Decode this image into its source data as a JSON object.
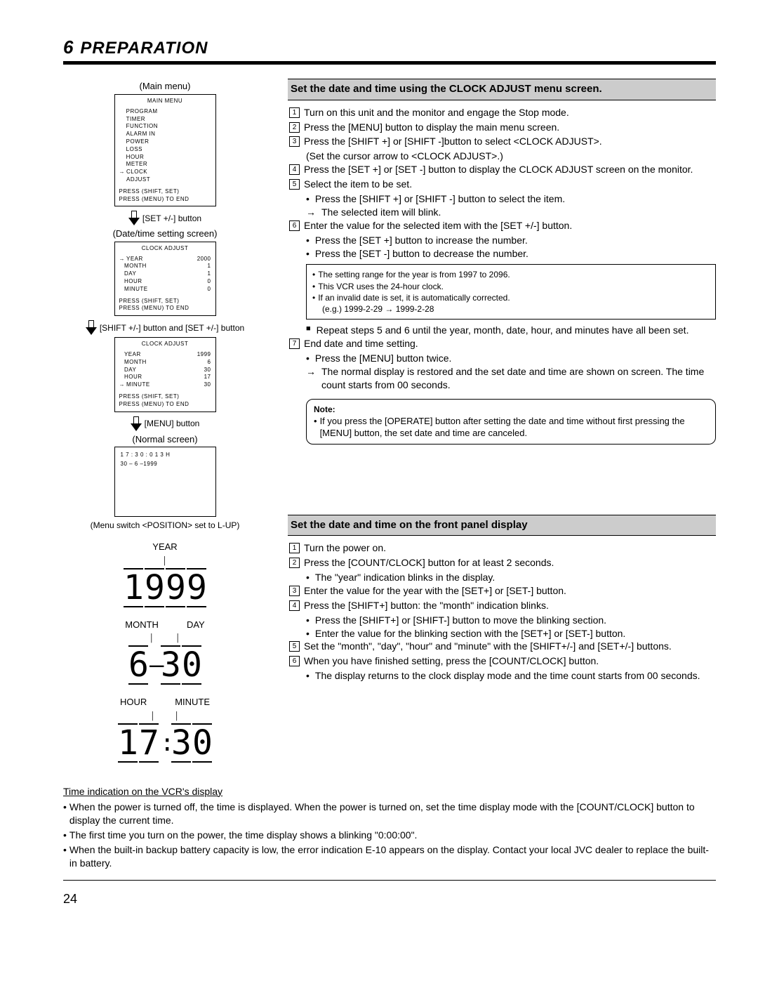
{
  "chapter": {
    "number": "6",
    "title": "PREPARATION"
  },
  "left": {
    "main_menu_label": "(Main menu)",
    "main_menu": {
      "title": "MAIN  MENU",
      "items": [
        "PROGRAM  TIMER",
        "FUNCTION",
        "ALARM  IN",
        "POWER  LOSS",
        "HOUR  METER",
        "CLOCK  ADJUST"
      ],
      "arrow_idx": 5,
      "foot1": "PRESS  (SHIFT, SET)",
      "foot2": "PRESS  (MENU)    TO    END"
    },
    "arrow1_caption": "[SET +/-] button",
    "datetime_label": "(Date/time setting screen)",
    "clock1": {
      "title": "CLOCK  ADJUST",
      "rows": [
        [
          "YEAR",
          "2000"
        ],
        [
          "MONTH",
          "1"
        ],
        [
          "DAY",
          "1"
        ],
        [
          "HOUR",
          "0"
        ],
        [
          "MINUTE",
          "0"
        ]
      ],
      "arrow_idx": 0,
      "foot1": "PRESS  (SHIFT, SET)",
      "foot2": "PRESS  (MENU)    TO    END"
    },
    "arrow2_caption": "[SHIFT +/-] button and [SET +/-] button",
    "clock2": {
      "title": "CLOCK  ADJUST",
      "rows": [
        [
          "YEAR",
          "1999"
        ],
        [
          "MONTH",
          "6"
        ],
        [
          "DAY",
          "30"
        ],
        [
          "HOUR",
          "17"
        ],
        [
          "MINUTE",
          "30"
        ]
      ],
      "arrow_idx": 4,
      "foot1": "PRESS  (SHIFT, SET)",
      "foot2": "PRESS  (MENU)    TO    END"
    },
    "arrow3_caption": "[MENU] button",
    "normal_label": "(Normal screen)",
    "normal_screen": {
      "l1": "1 7 : 3 0 : 0 1   3 H",
      "l2": "30 – 6 –1999"
    },
    "pos_caption": "(Menu switch <POSITION> set to L-UP)",
    "seg_year_label": "YEAR",
    "seg_year": "1999",
    "seg_month_label": "MONTH",
    "seg_day_label": "DAY",
    "seg_md": "6-30",
    "seg_hour_label": "HOUR",
    "seg_minute_label": "MINUTE",
    "seg_hm": "17:30"
  },
  "sec1": {
    "heading": "Set the date and time using the CLOCK ADJUST menu screen.",
    "s1": "Turn on this unit and the monitor and engage the Stop mode.",
    "s2": "Press the [MENU] button to display the main menu screen.",
    "s3": "Press the [SHIFT +] or [SHIFT -]button to select <CLOCK ADJUST>.",
    "s3a": "(Set the cursor arrow to <CLOCK ADJUST>.)",
    "s4": "Press the [SET +] or [SET -] button to display the CLOCK ADJUST screen on the monitor.",
    "s5": "Select the item to be set.",
    "s5a": "Press the [SHIFT +] or [SHIFT -] button to select the item.",
    "s5b": "The selected item will blink.",
    "s6": "Enter the value for the selected item with the [SET +/-] button.",
    "s6a": "Press the [SET +] button to increase the number.",
    "s6b": "Press the [SET -] button to decrease the number.",
    "info1": "The setting range for the year is from 1997 to 2096.",
    "info2": "This VCR uses the 24-hour clock.",
    "info3": "If an invalid date is set, it is automatically corrected.",
    "info3a": "(e.g.) 1999-2-29 → 1999-2-28",
    "repeat": "Repeat steps 5 and 6 until the year, month, date, hour, and minutes have all been set.",
    "s7": "End date and time setting.",
    "s7a": "Press the [MENU] button twice.",
    "s7b": "The normal display is restored and the set date and time are shown on screen. The time count starts from 00 seconds.",
    "note_label": "Note:",
    "note1": "If you press the [OPERATE] button after setting the date and time without first pressing the [MENU] button, the set date and time are canceled."
  },
  "sec2": {
    "heading": "Set the date and time on the front panel display",
    "s1": "Turn the power on.",
    "s2": "Press the [COUNT/CLOCK] button for at least 2 seconds.",
    "s2a": "The \"year\" indication blinks in the display.",
    "s3": "Enter the value for the year with the [SET+] or [SET-] button.",
    "s4": "Press the [SHIFT+] button: the \"month\" indication blinks.",
    "s4a": "Press the [SHIFT+] or [SHIFT-] button to move the blinking section.",
    "s4b": "Enter the value for the blinking section with the [SET+] or [SET-] button.",
    "s5": "Set the \"month\", \"day\", \"hour\" and \"minute\" with the [SHIFT+/-] and [SET+/-] buttons.",
    "s6": "When you have finished setting, press the [COUNT/CLOCK] button.",
    "s6a": "The display returns to the clock display mode and the time count starts from 00 seconds."
  },
  "footer": {
    "heading": "Time indication on the VCR's display",
    "b1": "When the power is turned off, the time is displayed. When the power is turned on, set the time display mode with the [COUNT/CLOCK] button to display the current time.",
    "b2": "The first time you turn on the power, the time display shows a blinking \"0:00:00\".",
    "b3": "When the built-in backup battery capacity is low, the error indication E-10 appears on the display.  Contact your local JVC dealer to replace the built-in battery."
  },
  "page_number": "24"
}
